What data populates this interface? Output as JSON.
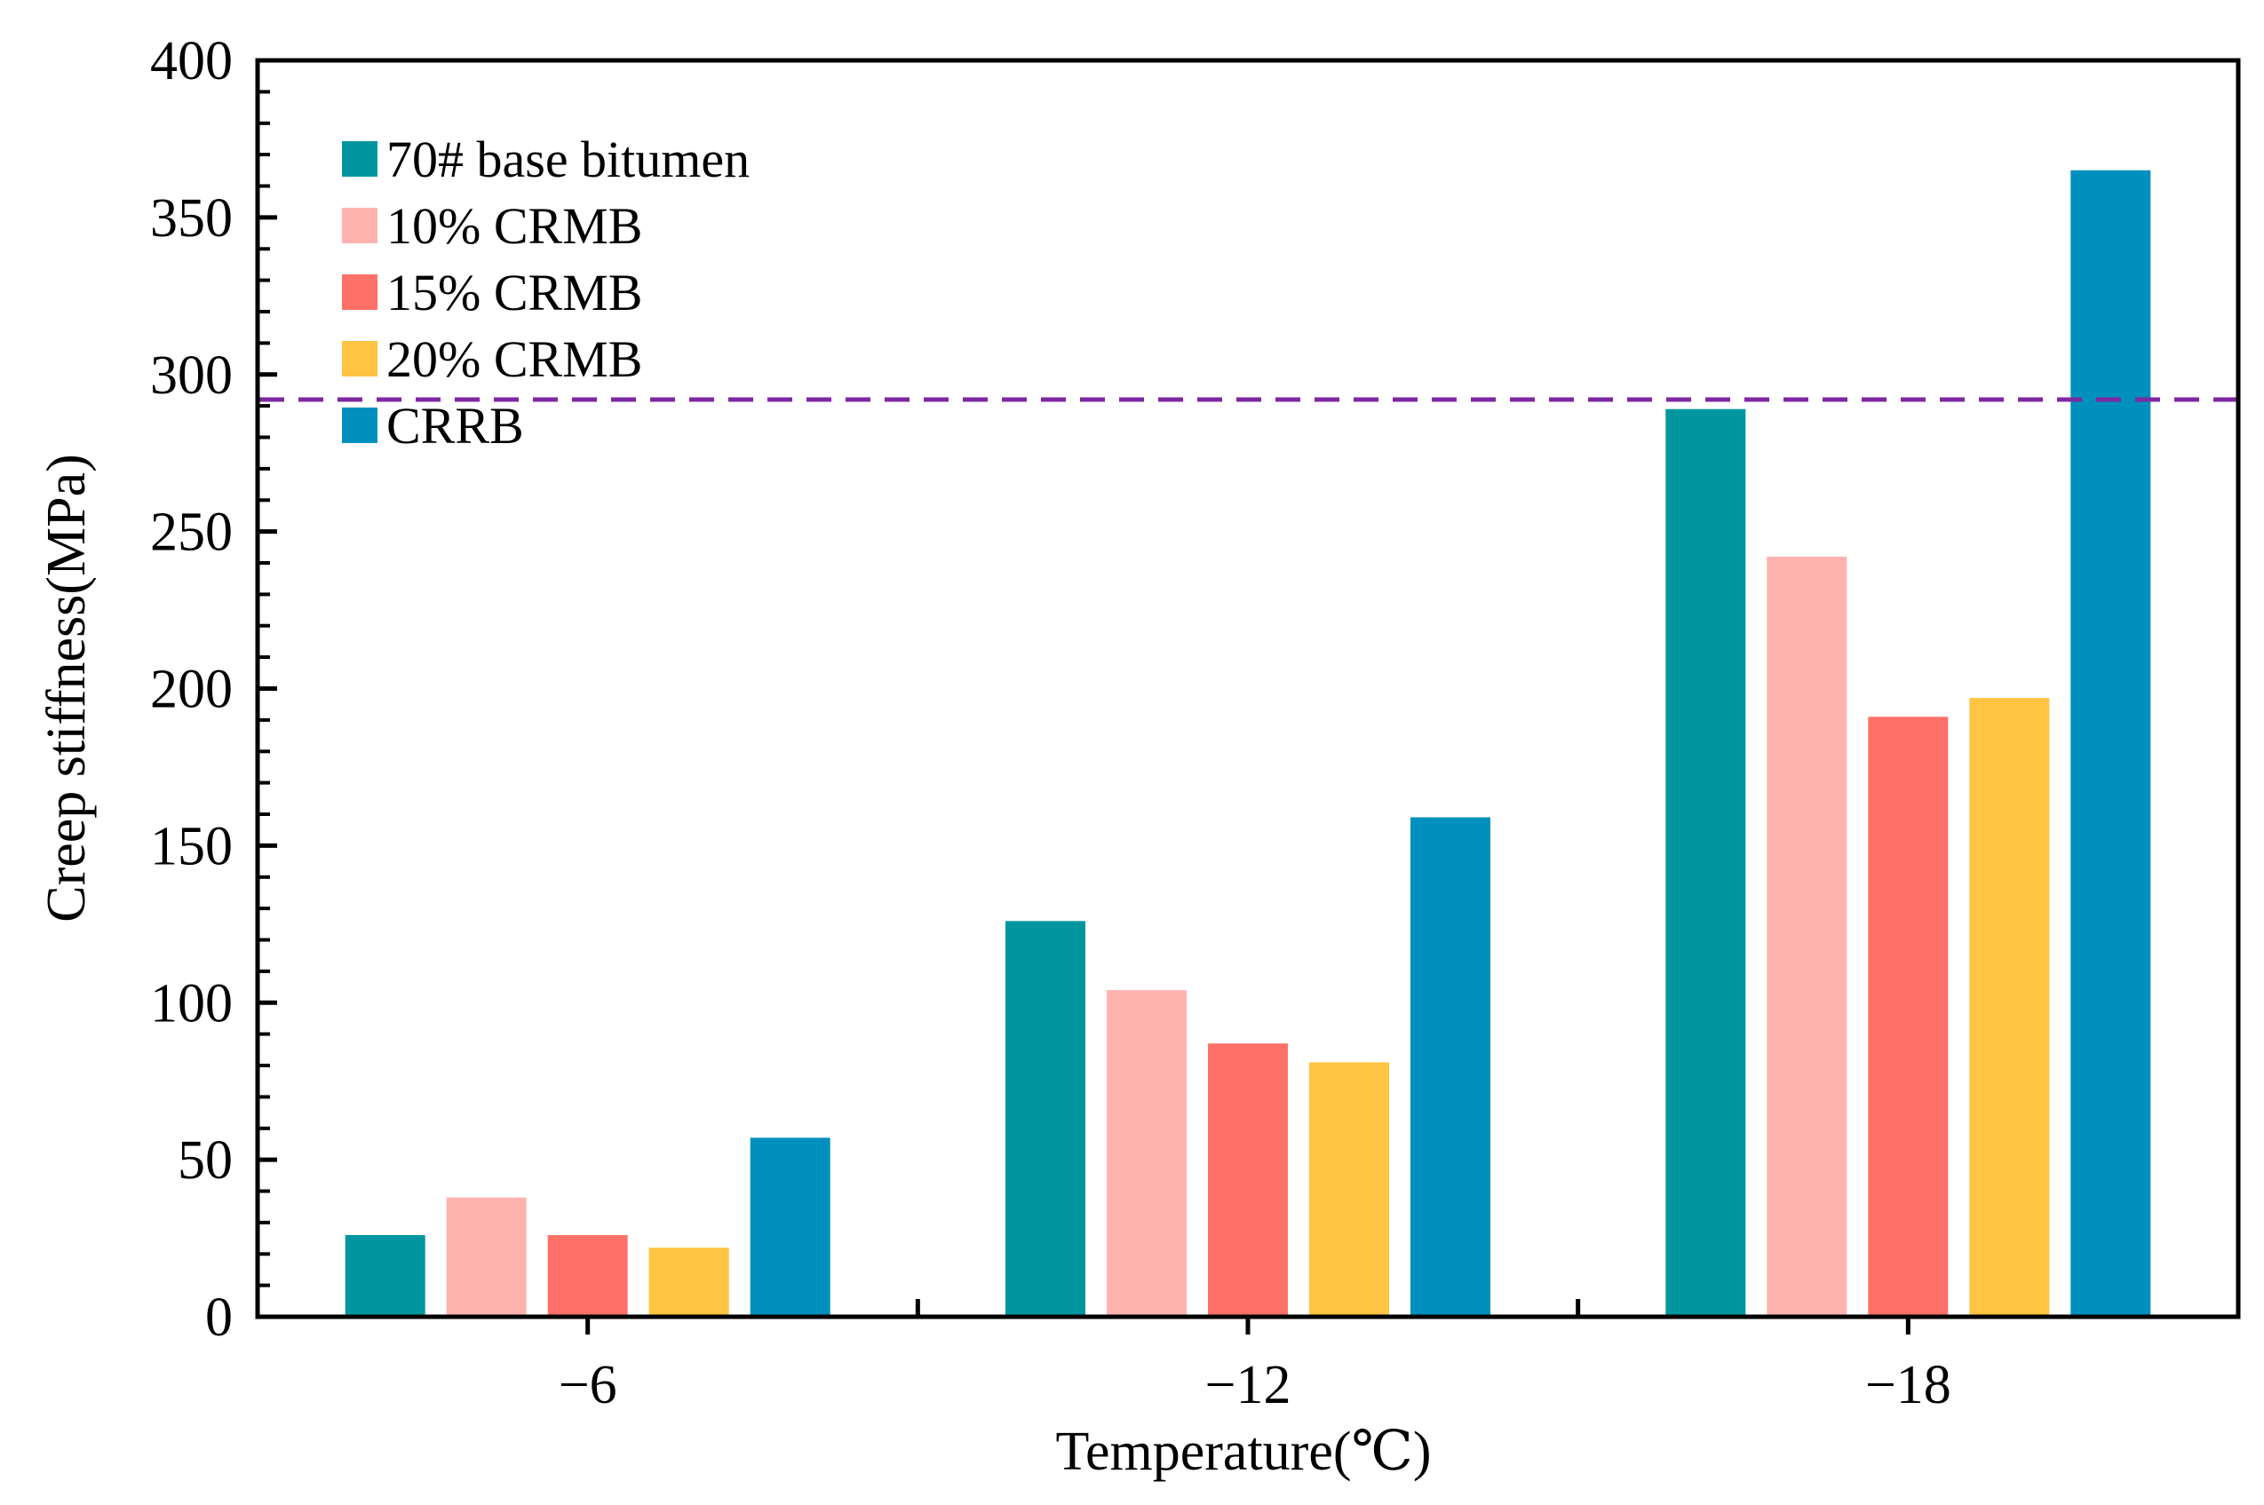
{
  "chart_data": {
    "type": "bar",
    "title": "",
    "xlabel": "Temperature(℃)",
    "ylabel": "Creep stiffness(MPa)",
    "categories": [
      "−6",
      "−12",
      "−18"
    ],
    "ylim": [
      0,
      400
    ],
    "yticks": [
      0,
      50,
      100,
      150,
      200,
      250,
      300,
      350,
      400
    ],
    "grid": false,
    "legend_position": "top-left",
    "series": [
      {
        "name": "70# base bitumen",
        "color": "#00969f",
        "values": [
          26,
          126,
          289
        ]
      },
      {
        "name": "10% CRMB",
        "color": "#ffb3af",
        "values": [
          38,
          104,
          242
        ]
      },
      {
        "name": "15% CRMB",
        "color": "#ff7168",
        "values": [
          26,
          87,
          191
        ]
      },
      {
        "name": "20% CRMB",
        "color": "#ffc441",
        "values": [
          22,
          81,
          197
        ]
      },
      {
        "name": "CRRB",
        "color": "#0090bd",
        "values": [
          57,
          159,
          365
        ]
      }
    ],
    "reference_line": {
      "value": 292,
      "color": "#7d28a2",
      "style": "dashed"
    }
  }
}
